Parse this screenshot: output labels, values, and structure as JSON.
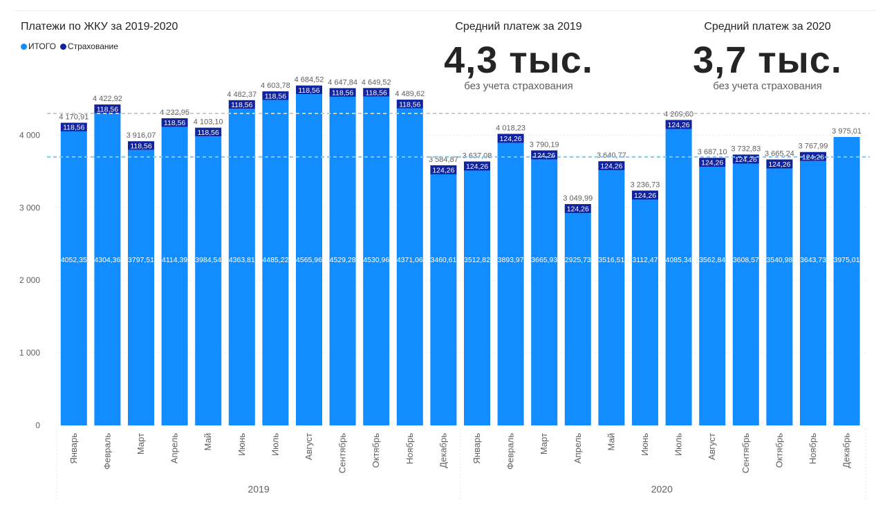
{
  "title": "Платежи по ЖКУ за 2019-2020",
  "legend": [
    {
      "label": "ИТОГО",
      "color": "#118dff"
    },
    {
      "label": "Страхование",
      "color": "#12239e"
    }
  ],
  "kpis": [
    {
      "heading": "Средний платеж за 2019",
      "value": "4,3 тыс.",
      "subtitle": "без учета страхования"
    },
    {
      "heading": "Средний платеж за 2020",
      "value": "3,7 тыс.",
      "subtitle": "без учета страхования"
    }
  ],
  "chart_data": {
    "type": "bar",
    "stacked": true,
    "years": [
      {
        "label": "2019",
        "months": [
          "Январь",
          "Февраль",
          "Март",
          "Апрель",
          "Май",
          "Июнь",
          "Июль",
          "Август",
          "Сентябрь",
          "Октябрь",
          "Ноябрь",
          "Декабрь"
        ]
      },
      {
        "label": "2020",
        "months": [
          "Январь",
          "Февраль",
          "Март",
          "Апрель",
          "Май",
          "Июнь",
          "Июль",
          "Август",
          "Сентябрь",
          "Октябрь",
          "Ноябрь",
          "Декабрь"
        ]
      }
    ],
    "series": [
      {
        "name": "ИТОГО",
        "color": "#118dff",
        "values": [
          4052.35,
          4304.36,
          3797.51,
          4114.39,
          3984.54,
          4363.81,
          4485.22,
          4565.96,
          4529.28,
          4530.96,
          4371.06,
          3460.61,
          3512.82,
          3893.97,
          3665.93,
          2925.73,
          3516.51,
          3112.47,
          4085.34,
          3562.84,
          3608.57,
          3540.98,
          3643.73,
          3975.01
        ],
        "labels": [
          "4052,35",
          "4304,36",
          "3797,51",
          "4114,39",
          "3984,54",
          "4363,81",
          "4485,22",
          "4565,96",
          "4529,28",
          "4530,96",
          "4371,06",
          "3460,61",
          "3512,82",
          "3893,97",
          "3665,93",
          "2925,73",
          "3516,51",
          "3112,47",
          "4085,34",
          "3562,84",
          "3608,57",
          "3540,98",
          "3643,73",
          "3975,01"
        ]
      },
      {
        "name": "Страхование",
        "color": "#12239e",
        "values": [
          118.56,
          118.56,
          118.56,
          118.56,
          118.56,
          118.56,
          118.56,
          118.56,
          118.56,
          118.56,
          118.56,
          124.26,
          124.26,
          124.26,
          124.26,
          124.26,
          124.26,
          124.26,
          124.26,
          124.26,
          124.26,
          124.26,
          124.26,
          null
        ],
        "labels": [
          "118,56",
          "118,56",
          "118,56",
          "118,56",
          "118,56",
          "118,56",
          "118,56",
          "118,56",
          "118,56",
          "118,56",
          "118,56",
          "124,26",
          "124,26",
          "124,26",
          "124,26",
          "124,26",
          "124,26",
          "124,26",
          "124,26",
          "124,26",
          "124,26",
          "124,26",
          "124,26",
          ""
        ]
      }
    ],
    "totals": [
      4170.91,
      4422.92,
      3916.07,
      4232.95,
      4103.1,
      4482.37,
      4603.78,
      4684.52,
      4647.84,
      4649.52,
      4489.62,
      3584.87,
      3637.08,
      4018.23,
      3790.19,
      3049.99,
      3640.77,
      3236.73,
      4209.6,
      3687.1,
      3732.83,
      3665.24,
      3767.99,
      3975.01
    ],
    "total_labels": [
      "4 170,91",
      "4 422,92",
      "3 916,07",
      "4 232,95",
      "4 103,10",
      "4 482,37",
      "4 603,78",
      "4 684,52",
      "4 647,84",
      "4 649,52",
      "4 489,62",
      "3 584,87",
      "3 637,08",
      "4 018,23",
      "3 790,19",
      "3 049,99",
      "3 640,77",
      "3 236,73",
      "4 209,60",
      "3 687,10",
      "3 732,83",
      "3 665,24",
      "3 767,99",
      "3 975,01"
    ],
    "yticks": [
      0,
      1000,
      2000,
      3000,
      4000
    ],
    "ytick_labels": [
      "0",
      "1 000",
      "2 000",
      "3 000",
      "4 000"
    ],
    "ylim": [
      0,
      4900
    ],
    "reference_lines": [
      {
        "value": 4300,
        "color": "#cccccc"
      },
      {
        "value": 3700,
        "color": "#7fc6ec"
      }
    ],
    "grid": true
  }
}
